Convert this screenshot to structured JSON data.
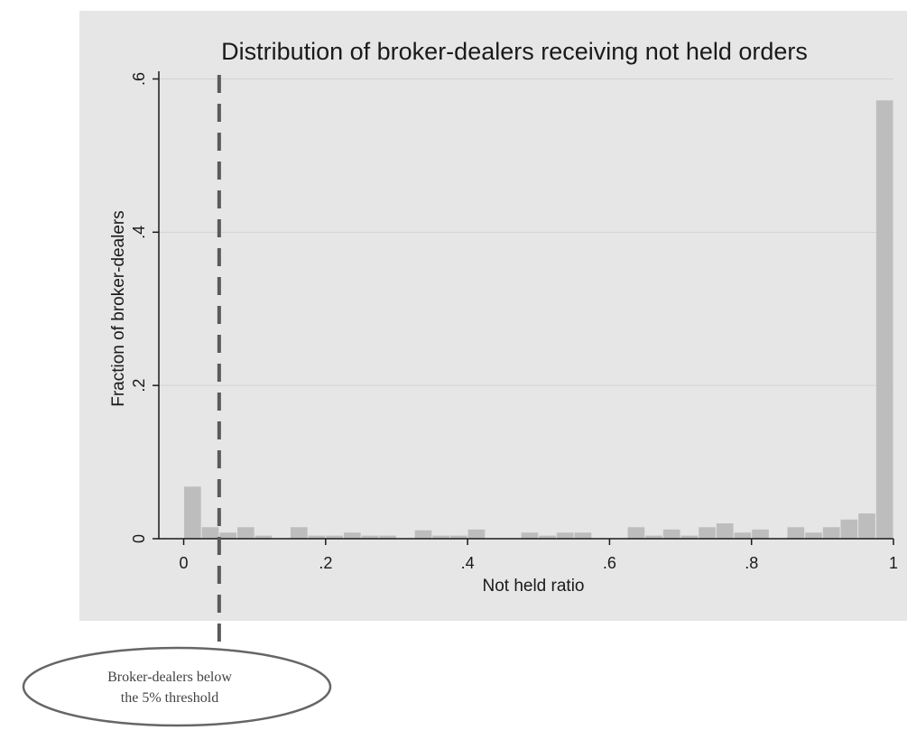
{
  "chart_data": {
    "type": "bar",
    "title": "Distribution of broker-dealers receiving not held orders",
    "xlabel": "Not held ratio",
    "ylabel": "Fraction of broker-dealers",
    "xlim": [
      -0.035,
      1.0
    ],
    "ylim": [
      0,
      0.61
    ],
    "xticks": [
      0,
      0.2,
      0.4,
      0.6,
      0.8,
      1
    ],
    "xtick_labels": [
      "0",
      ".2",
      ".4",
      ".6",
      ".8",
      "1"
    ],
    "yticks": [
      0,
      0.2,
      0.4,
      0.6
    ],
    "ytick_labels": [
      "0",
      ".2",
      ".4",
      ".6"
    ],
    "bin_width": 0.025,
    "bins": [
      {
        "x": 0.0,
        "value": 0.068
      },
      {
        "x": 0.025,
        "value": 0.015
      },
      {
        "x": 0.05,
        "value": 0.008
      },
      {
        "x": 0.075,
        "value": 0.015
      },
      {
        "x": 0.1,
        "value": 0.004
      },
      {
        "x": 0.15,
        "value": 0.015
      },
      {
        "x": 0.175,
        "value": 0.004
      },
      {
        "x": 0.2,
        "value": 0.004
      },
      {
        "x": 0.225,
        "value": 0.008
      },
      {
        "x": 0.25,
        "value": 0.004
      },
      {
        "x": 0.275,
        "value": 0.004
      },
      {
        "x": 0.325,
        "value": 0.011
      },
      {
        "x": 0.35,
        "value": 0.004
      },
      {
        "x": 0.375,
        "value": 0.004
      },
      {
        "x": 0.4,
        "value": 0.012
      },
      {
        "x": 0.475,
        "value": 0.008
      },
      {
        "x": 0.5,
        "value": 0.004
      },
      {
        "x": 0.525,
        "value": 0.008
      },
      {
        "x": 0.55,
        "value": 0.008
      },
      {
        "x": 0.625,
        "value": 0.015
      },
      {
        "x": 0.65,
        "value": 0.004
      },
      {
        "x": 0.675,
        "value": 0.012
      },
      {
        "x": 0.7,
        "value": 0.004
      },
      {
        "x": 0.725,
        "value": 0.015
      },
      {
        "x": 0.75,
        "value": 0.02
      },
      {
        "x": 0.775,
        "value": 0.008
      },
      {
        "x": 0.8,
        "value": 0.012
      },
      {
        "x": 0.85,
        "value": 0.015
      },
      {
        "x": 0.875,
        "value": 0.008
      },
      {
        "x": 0.9,
        "value": 0.015
      },
      {
        "x": 0.925,
        "value": 0.025
      },
      {
        "x": 0.95,
        "value": 0.033
      },
      {
        "x": 0.975,
        "value": 0.572
      }
    ],
    "threshold": {
      "x": 0.05,
      "style": "dashed"
    },
    "annotation": {
      "text_line1": "Broker-dealers below",
      "text_line2": "the 5% threshold"
    },
    "grid": true,
    "colors": {
      "bar": "#bdbdbd",
      "background": "#e6e6e6",
      "threshold": "#5a5a5a",
      "ellipse": "#666666"
    }
  }
}
